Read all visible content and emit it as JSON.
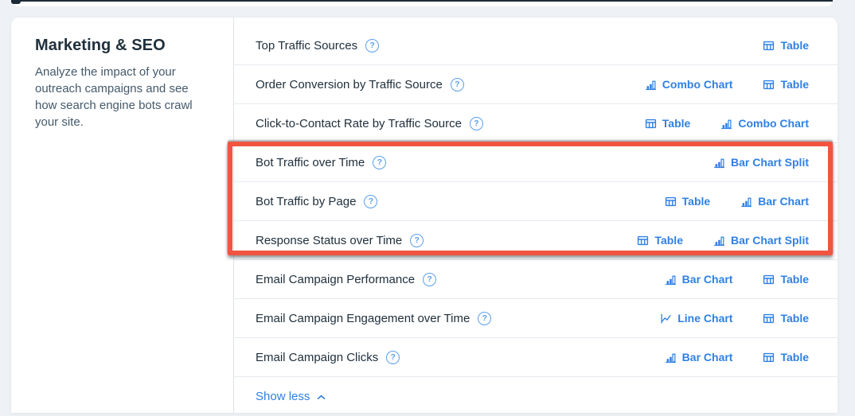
{
  "colors": {
    "page_bg": "#eef1f5",
    "dark_navy": "#1b2a36",
    "ink": "#20303c",
    "ink_soft": "#44596b",
    "hairline": "#e6eaf0",
    "hairline_strong": "#dde3ea",
    "link_blue": "#2f80e4",
    "help_blue": "#5aa0ed",
    "annotation_red": "#f1553f"
  },
  "section": {
    "title": "Marketing & SEO",
    "description": "Analyze the impact of your outreach campaigns and see how search engine bots crawl your site."
  },
  "icons": {
    "help_glyph": "?"
  },
  "reports": [
    {
      "label": "Top Traffic Sources",
      "highlighted": false,
      "actions": [
        {
          "label": "Table",
          "icon": "table"
        }
      ]
    },
    {
      "label": "Order Conversion by Traffic Source",
      "highlighted": false,
      "actions": [
        {
          "label": "Combo Chart",
          "icon": "bar"
        },
        {
          "label": "Table",
          "icon": "table"
        }
      ]
    },
    {
      "label": "Click-to-Contact Rate by Traffic Source",
      "highlighted": false,
      "actions": [
        {
          "label": "Table",
          "icon": "table"
        },
        {
          "label": "Combo Chart",
          "icon": "bar"
        }
      ]
    },
    {
      "label": "Bot Traffic over Time",
      "highlighted": true,
      "actions": [
        {
          "label": "Bar Chart Split",
          "icon": "bar"
        }
      ]
    },
    {
      "label": "Bot Traffic by Page",
      "highlighted": true,
      "actions": [
        {
          "label": "Table",
          "icon": "table"
        },
        {
          "label": "Bar Chart",
          "icon": "bar"
        }
      ]
    },
    {
      "label": "Response Status over Time",
      "highlighted": true,
      "actions": [
        {
          "label": "Table",
          "icon": "table"
        },
        {
          "label": "Bar Chart Split",
          "icon": "bar"
        }
      ]
    },
    {
      "label": "Email Campaign Performance",
      "highlighted": false,
      "actions": [
        {
          "label": "Bar Chart",
          "icon": "bar"
        },
        {
          "label": "Table",
          "icon": "table"
        }
      ]
    },
    {
      "label": "Email Campaign Engagement over Time",
      "highlighted": false,
      "actions": [
        {
          "label": "Line Chart",
          "icon": "line"
        },
        {
          "label": "Table",
          "icon": "table"
        }
      ]
    },
    {
      "label": "Email Campaign Clicks",
      "highlighted": false,
      "actions": [
        {
          "label": "Bar Chart",
          "icon": "bar"
        },
        {
          "label": "Table",
          "icon": "table"
        }
      ]
    }
  ],
  "footer": {
    "show_less_label": "Show less"
  },
  "annotation": {
    "type": "highlight-box",
    "color": "#f1553f",
    "rows_covered": [
      "Bot Traffic over Time",
      "Bot Traffic by Page",
      "Response Status over Time"
    ]
  }
}
